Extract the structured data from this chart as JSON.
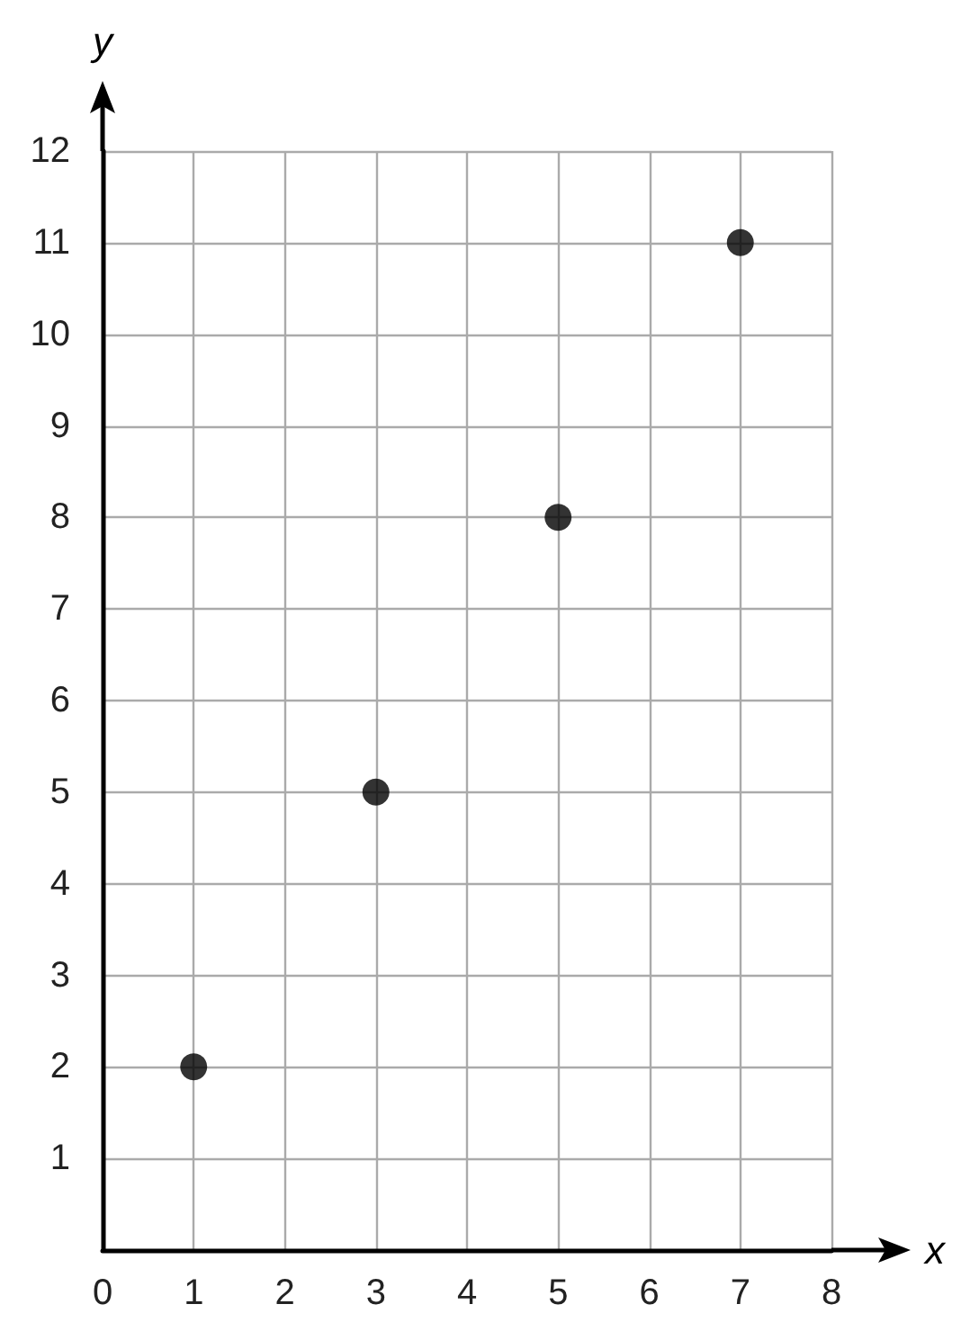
{
  "chart_data": {
    "type": "scatter",
    "xlabel": "x",
    "ylabel": "y",
    "x": [
      1,
      3,
      5,
      7
    ],
    "series": [
      {
        "color": "#000000",
        "values": [
          2,
          5,
          8,
          11
        ]
      }
    ],
    "xlim": [
      0,
      8
    ],
    "ylim": [
      0,
      12
    ],
    "xticks": [
      0,
      1,
      2,
      3,
      4,
      5,
      6,
      7,
      8
    ],
    "yticks": [
      {
        "value": 0,
        "label": null
      },
      1,
      2,
      3,
      4,
      5,
      6,
      7,
      8,
      9,
      10,
      11,
      12
    ],
    "grid": true,
    "marker": "circle"
  }
}
